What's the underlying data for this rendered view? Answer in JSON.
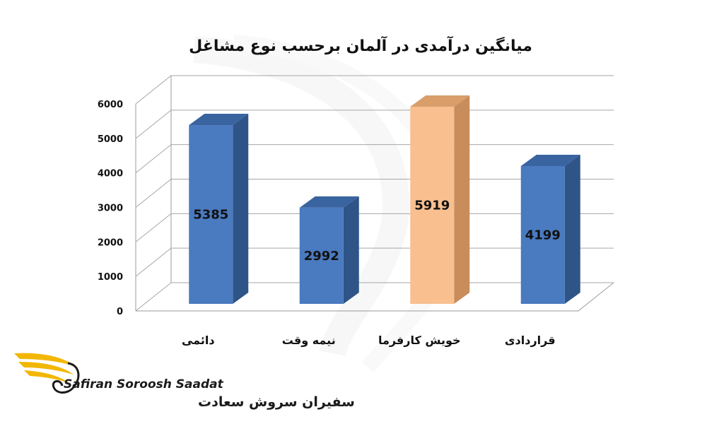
{
  "chart_data": {
    "type": "bar",
    "title": "میانگین درآمدی در آلمان برحسب نوع مشاغل",
    "categories": [
      "دائمی",
      "نیمه وقت",
      "خویش کارفرما",
      "قراردادی"
    ],
    "values": [
      5385,
      2992,
      5919,
      4199
    ],
    "data_labels": [
      "5385",
      "2992",
      "5919",
      "4199"
    ],
    "yticks": [
      "0",
      "1000",
      "2000",
      "3000",
      "4000",
      "5000",
      "6000"
    ],
    "ylim": [
      0,
      6000
    ],
    "grid": true,
    "three_d": true,
    "bar_colors": [
      "#4a7abf",
      "#4a7abf",
      "#f9bf8f",
      "#4a7abf"
    ],
    "bar_side_colors": [
      "#2f5487",
      "#2f5487",
      "#c98d5b",
      "#2f5487"
    ],
    "bar_top_colors": [
      "#3a64a0",
      "#3a64a0",
      "#d99e6a",
      "#3a64a0"
    ]
  },
  "logo": {
    "text_en": "Safiran Soroosh Saadat",
    "text_fa": "سفیران سروش سعادت",
    "wing_color": "#f2b705"
  }
}
